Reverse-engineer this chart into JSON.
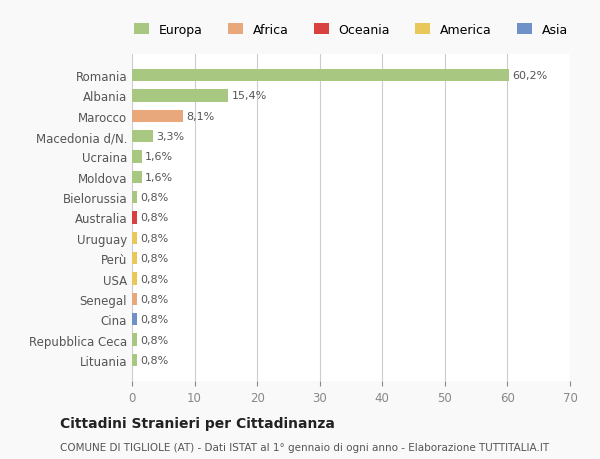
{
  "countries": [
    "Romania",
    "Albania",
    "Marocco",
    "Macedonia d/N.",
    "Ucraina",
    "Moldova",
    "Bielorussia",
    "Australia",
    "Uruguay",
    "Perù",
    "USA",
    "Senegal",
    "Cina",
    "Repubblica Ceca",
    "Lituania"
  ],
  "values": [
    60.2,
    15.4,
    8.1,
    3.3,
    1.6,
    1.6,
    0.8,
    0.8,
    0.8,
    0.8,
    0.8,
    0.8,
    0.8,
    0.8,
    0.8
  ],
  "labels": [
    "60,2%",
    "15,4%",
    "8,1%",
    "3,3%",
    "1,6%",
    "1,6%",
    "0,8%",
    "0,8%",
    "0,8%",
    "0,8%",
    "0,8%",
    "0,8%",
    "0,8%",
    "0,8%",
    "0,8%"
  ],
  "colors": [
    "#a8c882",
    "#a8c882",
    "#e8a87c",
    "#a8c882",
    "#a8c882",
    "#a8c882",
    "#a8c882",
    "#d94040",
    "#e8c85a",
    "#e8c85a",
    "#e8c85a",
    "#e8a87c",
    "#7090c8",
    "#a8c882",
    "#a8c882"
  ],
  "legend_labels": [
    "Europa",
    "Africa",
    "Oceania",
    "America",
    "Asia"
  ],
  "legend_colors": [
    "#a8c882",
    "#e8a87c",
    "#d94040",
    "#e8c85a",
    "#7090c8"
  ],
  "xlim": [
    0,
    70
  ],
  "xticks": [
    0,
    10,
    20,
    30,
    40,
    50,
    60,
    70
  ],
  "title": "Cittadini Stranieri per Cittadinanza",
  "subtitle": "COMUNE DI TIGLIOLE (AT) - Dati ISTAT al 1° gennaio di ogni anno - Elaborazione TUTTITALIA.IT",
  "bg_color": "#f9f9f9",
  "bar_bg_color": "#ffffff",
  "grid_color": "#cccccc"
}
